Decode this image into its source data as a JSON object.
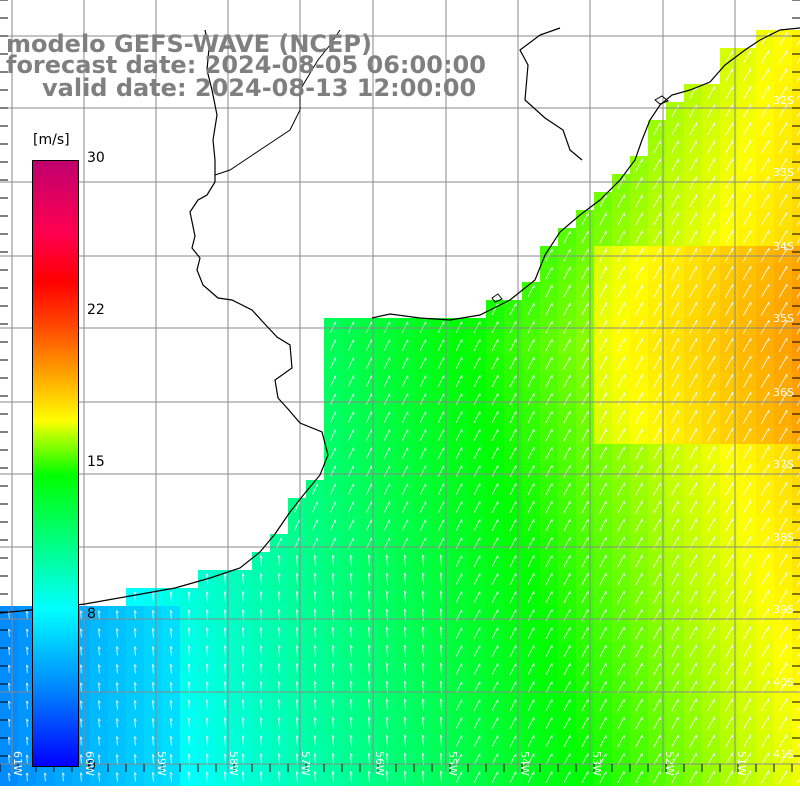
{
  "title": {
    "line1": "modelo GEFS-WAVE (NCEP)",
    "line2": "forecast date: 2024-08-05 06:00:00",
    "line3": "valid date: 2024-08-13 12:00:00"
  },
  "colorbar": {
    "unit": "[m/s]",
    "ticks": [
      "30",
      "22",
      "15",
      "8",
      "0"
    ]
  },
  "map": {
    "lat_labels": [
      "32S",
      "33S",
      "34S",
      "35S",
      "36S",
      "37S",
      "38S",
      "39S",
      "40S",
      "41S"
    ],
    "lon_labels": [
      "61W",
      "60W",
      "59W",
      "58W",
      "57W",
      "56W",
      "55W",
      "54W",
      "53W",
      "52W",
      "51W"
    ],
    "land_color": "#ffffff",
    "grid_color": "#888888",
    "arrow_color": "#ffffff"
  }
}
